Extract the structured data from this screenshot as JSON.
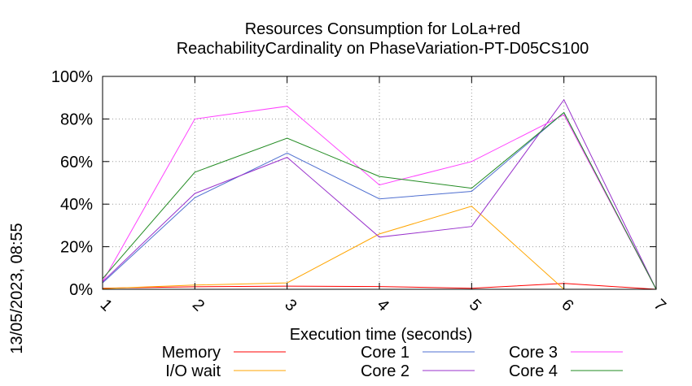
{
  "chart_data": {
    "type": "line",
    "title_line1": "Resources Consumption for LoLa+red",
    "title_line2": "ReachabilityCardinality on PhaseVariation-PT-D05CS100",
    "xlabel": "Execution time (seconds)",
    "ylabel": "",
    "side_label": "13/05/2023, 08:55",
    "xlim": [
      1,
      7
    ],
    "ylim": [
      0,
      100
    ],
    "x_ticks": [
      "1",
      "2",
      "3",
      "4",
      "5",
      "6",
      "7"
    ],
    "y_ticks": [
      "0%",
      "20%",
      "40%",
      "60%",
      "80%",
      "100%"
    ],
    "grid": true,
    "legend_position": "bottom",
    "x": [
      1,
      2,
      3,
      4,
      5,
      6,
      7
    ],
    "series": [
      {
        "name": "Memory",
        "color": "#ff0000",
        "values": [
          0.5,
          1.2,
          1.5,
          1.3,
          0.5,
          2.8,
          0
        ]
      },
      {
        "name": "I/O wait",
        "color": "#ffa500",
        "values": [
          0.3,
          2,
          3,
          26,
          39,
          0,
          0
        ]
      },
      {
        "name": "Core 1",
        "color": "#4f6fd0",
        "values": [
          3,
          43,
          64,
          42.5,
          46,
          83,
          0
        ]
      },
      {
        "name": "Core 2",
        "color": "#9932cc",
        "values": [
          3.5,
          45,
          62,
          24.5,
          29.5,
          89,
          0
        ]
      },
      {
        "name": "Core 3",
        "color": "#ff40ff",
        "values": [
          3.5,
          80,
          86,
          49,
          60,
          82,
          0
        ]
      },
      {
        "name": "Core 4",
        "color": "#228b22",
        "values": [
          5,
          55,
          71,
          53,
          47.5,
          83,
          0
        ]
      }
    ]
  }
}
